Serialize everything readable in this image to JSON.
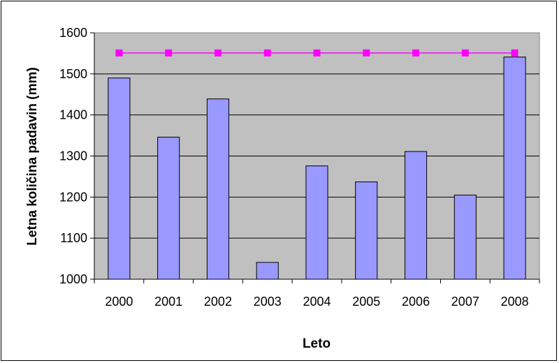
{
  "chart_data": {
    "type": "bar",
    "title": "",
    "xlabel": "Leto",
    "ylabel": "Letna količina padavin (mm)",
    "categories": [
      "2000",
      "2001",
      "2002",
      "2003",
      "2004",
      "2005",
      "2006",
      "2007",
      "2008"
    ],
    "series": [
      {
        "type": "bar",
        "values": [
          1490,
          1346,
          1439,
          1041,
          1276,
          1237,
          1311,
          1205,
          1541
        ],
        "color": "#9999FF"
      },
      {
        "type": "line",
        "values": [
          1551,
          1551,
          1551,
          1551,
          1551,
          1551,
          1551,
          1551,
          1551
        ],
        "color": "#FF00FF",
        "marker": "square"
      }
    ],
    "ylim": [
      1000,
      1600
    ],
    "yticks": [
      "1000",
      "1100",
      "1200",
      "1300",
      "1400",
      "1500",
      "1600"
    ],
    "grid": true,
    "legend": "none",
    "plot_background": "#C0C0C0"
  }
}
